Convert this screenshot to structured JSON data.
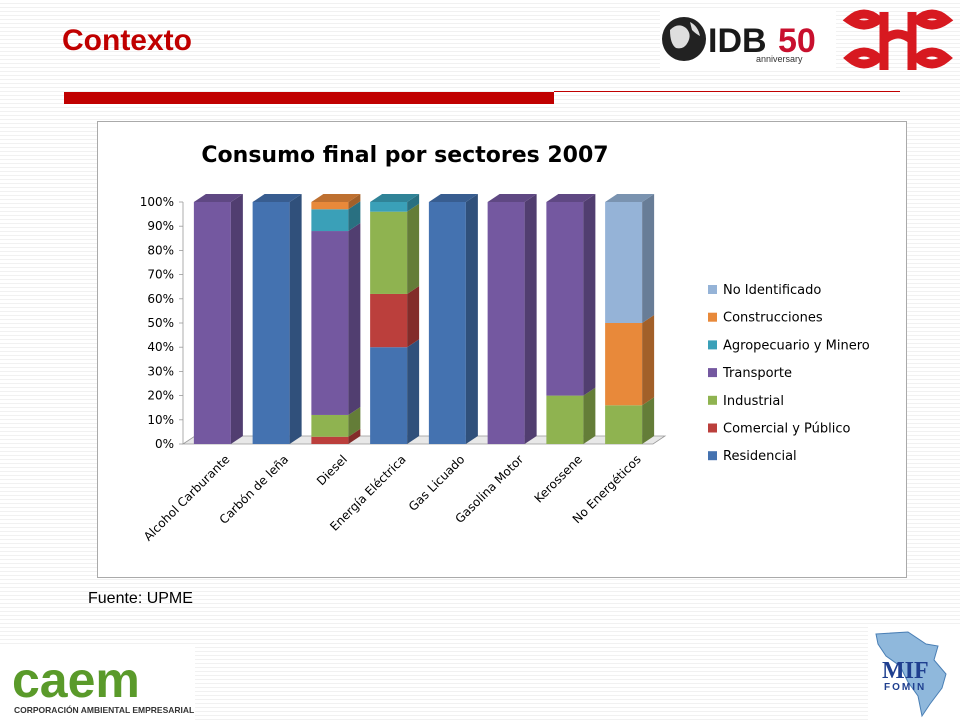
{
  "slide": {
    "title": "Contexto",
    "source": "Fuente: UPME"
  },
  "logos": {
    "idb": {
      "main": "IDB",
      "number": "50",
      "sub": "anniversary"
    },
    "caem": {
      "main": "caem",
      "sub": "CORPORACIÓN AMBIENTAL EMPRESARIAL"
    },
    "mif": {
      "main": "MIF",
      "sub": "FOMIN"
    }
  },
  "colors": {
    "accent_red": "#c00000",
    "No Identificado": "#95b3d7",
    "Construcciones": "#e8893a",
    "Agropecuario y Minero": "#3aa0b8",
    "Transporte": "#7458a0",
    "Industrial": "#8fb350",
    "Comercial y Público": "#bb3f3c",
    "Residencial": "#4472b0"
  },
  "chart_data": {
    "type": "bar",
    "stacked": true,
    "percent": true,
    "three_d": true,
    "title": "Consumo final por sectores 2007",
    "categories": [
      "Alcohol Carburante",
      "Carbón de leña",
      "Diesel",
      "Energía Eléctrica",
      "Gas Licuado",
      "Gasolina Motor",
      "Kerossene",
      "No Energéticos"
    ],
    "yticks": [
      "0%",
      "10%",
      "20%",
      "30%",
      "40%",
      "50%",
      "60%",
      "70%",
      "80%",
      "90%",
      "100%"
    ],
    "ylim": [
      0,
      100
    ],
    "legend_position": "right",
    "series": [
      {
        "name": "Residencial",
        "values": [
          0,
          100,
          0,
          40,
          100,
          0,
          0,
          0
        ]
      },
      {
        "name": "Comercial y Público",
        "values": [
          0,
          0,
          3,
          22,
          0,
          0,
          0,
          0
        ]
      },
      {
        "name": "Industrial",
        "values": [
          0,
          0,
          9,
          34,
          0,
          0,
          20,
          16
        ]
      },
      {
        "name": "Transporte",
        "values": [
          100,
          0,
          76,
          0,
          0,
          100,
          80,
          0
        ]
      },
      {
        "name": "Agropecuario y Minero",
        "values": [
          0,
          0,
          9,
          4,
          0,
          0,
          0,
          0
        ]
      },
      {
        "name": "Construcciones",
        "values": [
          0,
          0,
          3,
          0,
          0,
          0,
          0,
          34
        ]
      },
      {
        "name": "No Identificado",
        "values": [
          0,
          0,
          0,
          0,
          0,
          0,
          0,
          50
        ]
      }
    ],
    "legend_order": [
      "No Identificado",
      "Construcciones",
      "Agropecuario y Minero",
      "Transporte",
      "Industrial",
      "Comercial y Público",
      "Residencial"
    ]
  }
}
